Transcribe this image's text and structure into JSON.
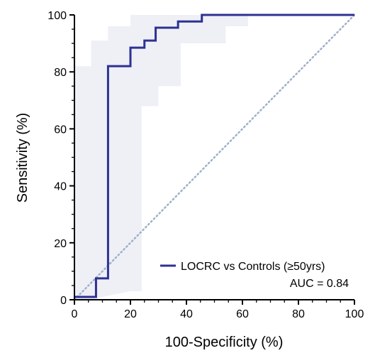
{
  "chart_data": {
    "type": "line",
    "title": "",
    "xlabel": "100-Specificity (%)",
    "ylabel": "Sensitivity (%)",
    "xlim": [
      0,
      100
    ],
    "ylim": [
      0,
      100
    ],
    "x_ticks": [
      "0",
      "20",
      "40",
      "60",
      "80",
      "100"
    ],
    "y_ticks": [
      "0",
      "20",
      "40",
      "60",
      "80",
      "100"
    ],
    "grid": false,
    "legend_position": "bottom-right",
    "series": [
      {
        "name": "LOCRC vs Controls (≥50yrs)",
        "color": "#2e3192",
        "x": [
          0,
          7.7,
          7.7,
          12,
          12,
          20,
          20,
          25,
          25,
          29,
          29,
          37,
          37,
          45.5,
          45.5,
          100
        ],
        "y": [
          1,
          1,
          7.5,
          7.5,
          82,
          82,
          88.5,
          88.5,
          91,
          91,
          95.5,
          95.5,
          97.7,
          97.7,
          100,
          100
        ]
      }
    ],
    "confidence_band": {
      "color": "#eef0f6",
      "upper": {
        "x": [
          0,
          6,
          6,
          12,
          12,
          20,
          20,
          25,
          25,
          100
        ],
        "y": [
          82,
          82,
          91,
          91,
          96,
          96,
          100,
          100,
          100,
          100
        ]
      },
      "lower": {
        "x": [
          0,
          6,
          10,
          20,
          22,
          24,
          24,
          30,
          30,
          38,
          38,
          54,
          54,
          62,
          62,
          100
        ],
        "y": [
          0,
          0,
          1,
          3,
          3,
          3,
          68,
          68,
          75,
          75,
          90,
          90,
          96,
          96,
          100,
          100
        ]
      }
    },
    "reference_line": {
      "x": [
        0,
        100
      ],
      "y": [
        0,
        100
      ],
      "color": "#9fb0c8",
      "style": "dotted"
    },
    "annotation": "AUC = 0.84"
  }
}
